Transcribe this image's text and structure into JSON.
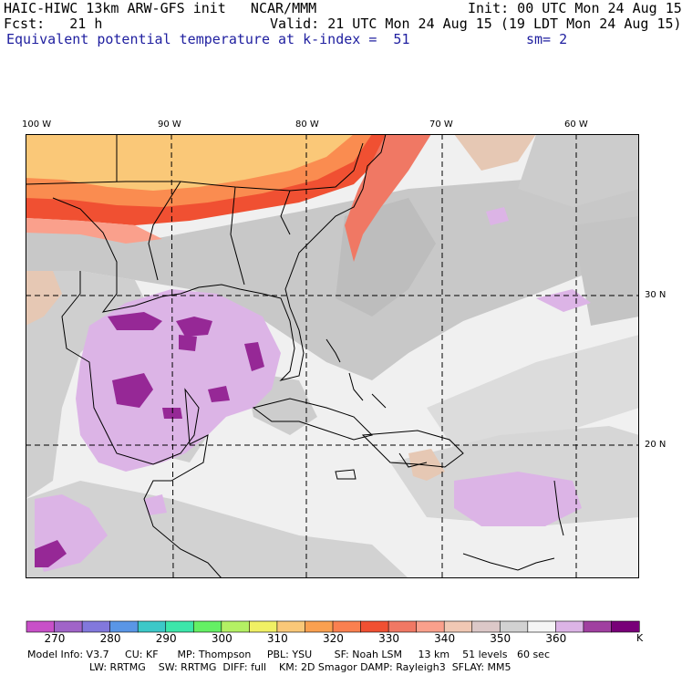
{
  "header": {
    "line1_left": "HAIC-HIWC 13km ARW-GFS init   NCAR/MMM",
    "line1_right": "Init: 00 UTC Mon 24 Aug 15",
    "line2_left": "Fcst:   21 h",
    "line2_right": "Valid: 21 UTC Mon 24 Aug 15 (19 LDT Mon 24 Aug 15)",
    "field": "Equivalent potential temperature",
    "level": "at k-index =  51",
    "smooth": "sm= 2"
  },
  "map": {
    "lon_labels": [
      "100 W",
      "90 W",
      "80 W",
      "70 W",
      "60 W"
    ],
    "lat_labels": [
      "30 N",
      "20 N"
    ],
    "colors": {
      "cool_gray": "#d2d2d2",
      "mid_gray": "#bebebe",
      "light": "#f0f0f0",
      "lavender": "#dcb4e6",
      "purple": "#962896",
      "orange": "#fa8c50",
      "red": "#f05032",
      "peach": "#fac878",
      "tan": "#e6c8b4"
    }
  },
  "colorbar": {
    "colors": [
      "#c850c8",
      "#a064c8",
      "#8278dc",
      "#5a96e6",
      "#3cc8c8",
      "#3ce6aa",
      "#64f064",
      "#b4f064",
      "#f0f064",
      "#fac878",
      "#faa050",
      "#fa8050",
      "#f05032",
      "#f07864",
      "#faa08c",
      "#f0c8b4",
      "#dcc8c8",
      "#d2d2d2",
      "#f5f5f5",
      "#dcb4e6",
      "#a040a0",
      "#780078"
    ],
    "ticks": [
      "270",
      "280",
      "290",
      "300",
      "310",
      "320",
      "330",
      "340",
      "350",
      "360"
    ],
    "unit": "K"
  },
  "footer": {
    "line1": "Model Info: V3.7     CU: KF      MP: Thompson     PBL: YSU       SF: Noah LSM     13 km    51 levels   60 sec",
    "line2": "LW: RRTMG    SW: RRTMG  DIFF: full    KM: 2D Smagor DAMP: Rayleigh3  SFLAY: MM5"
  }
}
